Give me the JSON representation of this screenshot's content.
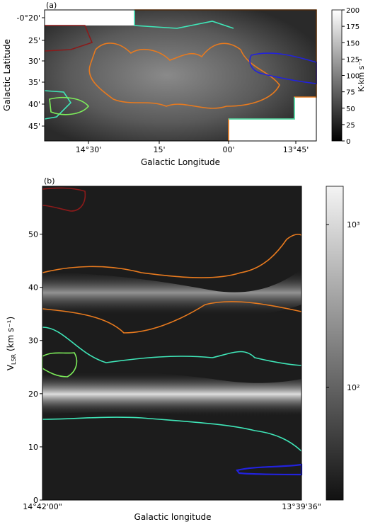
{
  "chart_data": [
    {
      "type": "heatmap",
      "panel_label": "(a)",
      "xlabel": "Galactic Longitude",
      "ylabel": "Galactic Latitude",
      "x_ticks": [
        "14°30'",
        "15'",
        "00'",
        "13°45'"
      ],
      "y_ticks": [
        "-0°20'",
        "25'",
        "30'",
        "35'",
        "40'",
        "45'"
      ],
      "colorbar": {
        "label": "K·km s⁻¹",
        "ticks": [
          "200",
          "175",
          "150",
          "125",
          "100",
          "75",
          "50",
          "25",
          "0"
        ],
        "range": [
          0,
          200
        ],
        "colormap": "gray"
      },
      "contour_colors": [
        "#e87a1e",
        "#3fe6b8",
        "#2222dd",
        "#8b1a1a",
        "#7ded5a"
      ]
    },
    {
      "type": "heatmap",
      "panel_label": "(b)",
      "xlabel": "Galactic longitude",
      "ylabel_main": "V",
      "ylabel_sub": "LSR",
      "ylabel_rest": " (km s⁻¹)",
      "x_ticks": [
        "14°42'00\"",
        "13°39'36\""
      ],
      "y_ticks": [
        "0",
        "10",
        "20",
        "30",
        "40",
        "50"
      ],
      "ylim": [
        0,
        59
      ],
      "colorbar": {
        "scale": "log",
        "ticks": [
          "10³",
          "10²"
        ],
        "colormap": "gray"
      },
      "contour_colors": [
        "#e87a1e",
        "#3fe6b8",
        "#2222dd",
        "#8b1a1a",
        "#7ded5a"
      ]
    }
  ]
}
